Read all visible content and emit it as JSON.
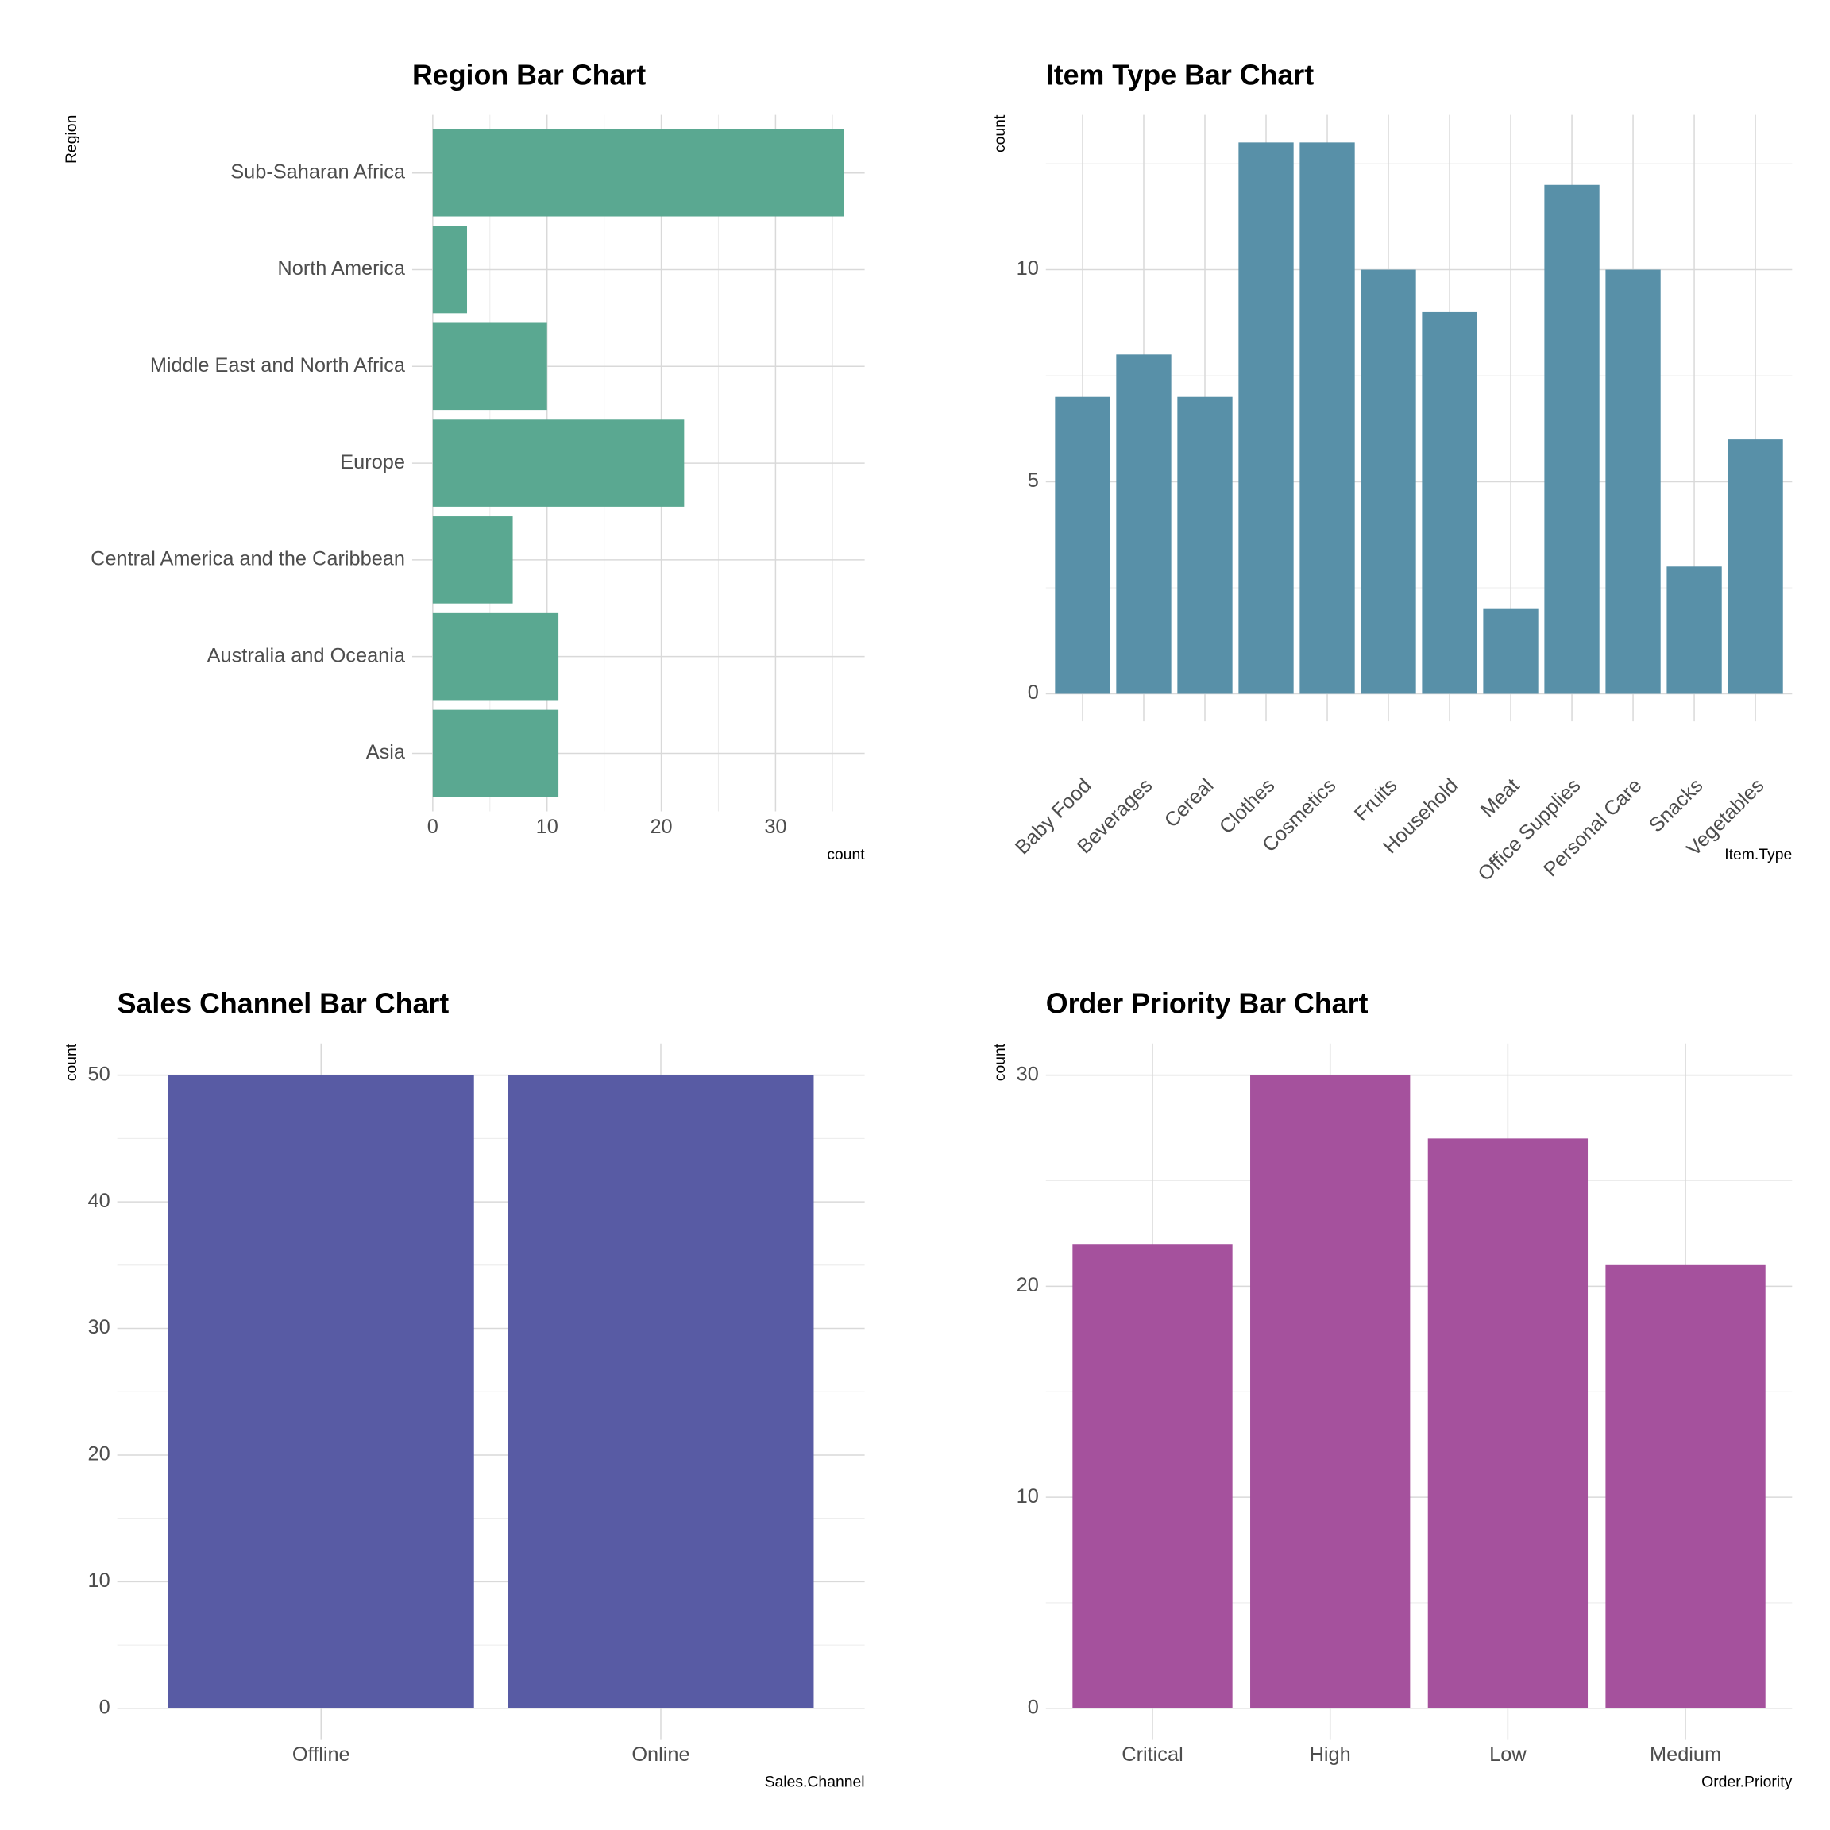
{
  "chart_data": [
    {
      "type": "bar",
      "horizontal": true,
      "title": "Region Bar Chart",
      "x_label": "count",
      "y_label": "Region",
      "categories": [
        "Asia",
        "Australia and Oceania",
        "Central America and the Caribbean",
        "Europe",
        "Middle East and North Africa",
        "North America",
        "Sub-Saharan Africa"
      ],
      "values": [
        11,
        11,
        7,
        22,
        10,
        3,
        36
      ],
      "color": "#5aa891",
      "xlim": [
        -1.8,
        37.8
      ],
      "xticks": [
        0,
        10,
        20,
        30
      ],
      "minor_xticks": [
        5,
        15,
        25,
        35
      ],
      "grid": true
    },
    {
      "type": "bar",
      "title": "Item Type Bar Chart",
      "x_label": "Item.Type",
      "y_label": "count",
      "rotate_labels": true,
      "categories": [
        "Baby Food",
        "Beverages",
        "Cereal",
        "Clothes",
        "Cosmetics",
        "Fruits",
        "Household",
        "Meat",
        "Office Supplies",
        "Personal Care",
        "Snacks",
        "Vegetables"
      ],
      "values": [
        7,
        8,
        7,
        13,
        13,
        10,
        9,
        2,
        12,
        10,
        3,
        6
      ],
      "color": "#5890a8",
      "ylim": [
        -0.65,
        13.65
      ],
      "yticks": [
        0,
        5,
        10
      ],
      "minor_yticks": [
        2.5,
        7.5,
        12.5
      ],
      "grid": true
    },
    {
      "type": "bar",
      "title": "Sales Channel Bar Chart",
      "x_label": "Sales.Channel",
      "y_label": "count",
      "categories": [
        "Offline",
        "Online"
      ],
      "values": [
        50,
        50
      ],
      "color": "#585ba4",
      "ylim": [
        -2.5,
        52.5
      ],
      "yticks": [
        0,
        10,
        20,
        30,
        40,
        50
      ],
      "minor_yticks": [
        5,
        15,
        25,
        35,
        45
      ],
      "grid": true
    },
    {
      "type": "bar",
      "title": "Order Priority Bar Chart",
      "x_label": "Order.Priority",
      "y_label": "count",
      "categories": [
        "Critical",
        "High",
        "Low",
        "Medium"
      ],
      "values": [
        22,
        30,
        27,
        21
      ],
      "color": "#a5519d",
      "ylim": [
        -1.5,
        31.5
      ],
      "yticks": [
        0,
        10,
        20,
        30
      ],
      "minor_yticks": [
        5,
        15,
        25
      ],
      "grid": true
    }
  ]
}
